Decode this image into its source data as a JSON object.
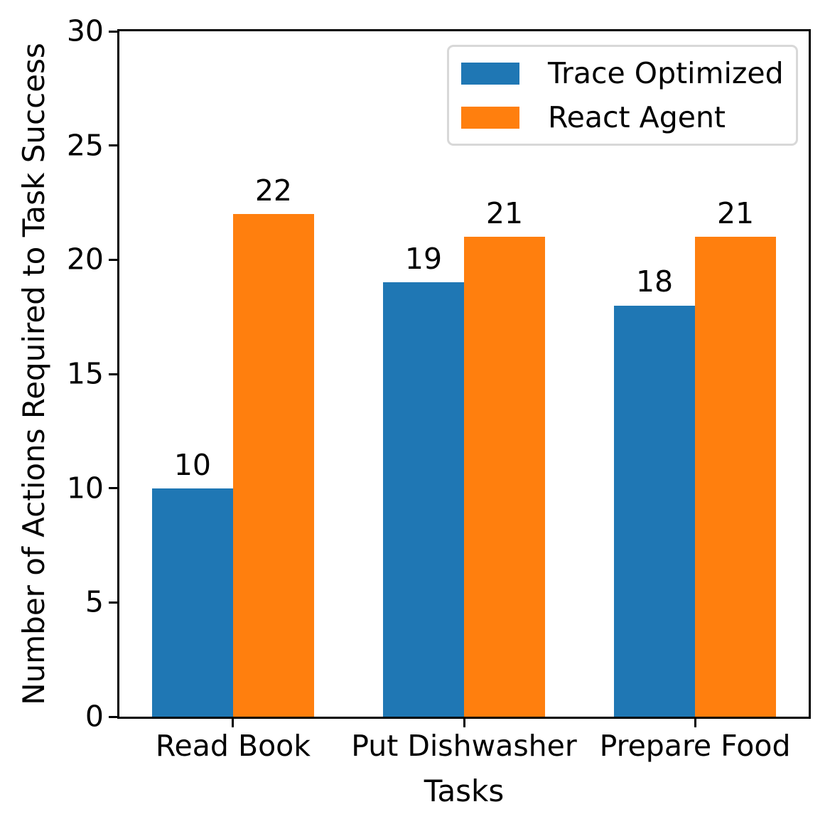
{
  "chart_data": {
    "type": "bar",
    "title": "",
    "xlabel": "Tasks",
    "ylabel": "Number of Actions Required to Task Success",
    "categories": [
      "Read Book",
      "Put Dishwasher",
      "Prepare Food"
    ],
    "series": [
      {
        "name": "Trace Optimized",
        "color": "#1f77b4",
        "values": [
          10,
          19,
          18
        ]
      },
      {
        "name": "React Agent",
        "color": "#ff7f0e",
        "values": [
          22,
          21,
          21
        ]
      }
    ],
    "value_labels": {
      "trace_optimized": [
        "10",
        "19",
        "18"
      ],
      "react_agent": [
        "22",
        "21",
        "21"
      ]
    },
    "ylim": [
      0,
      30
    ],
    "yticks": [
      "0",
      "5",
      "10",
      "15",
      "20",
      "25",
      "30"
    ],
    "grid": false,
    "legend_position": "upper right",
    "colors": {
      "spine": "#000000",
      "text": "#000000",
      "legend_border": "#d8d8d8",
      "background": "#ffffff"
    }
  }
}
